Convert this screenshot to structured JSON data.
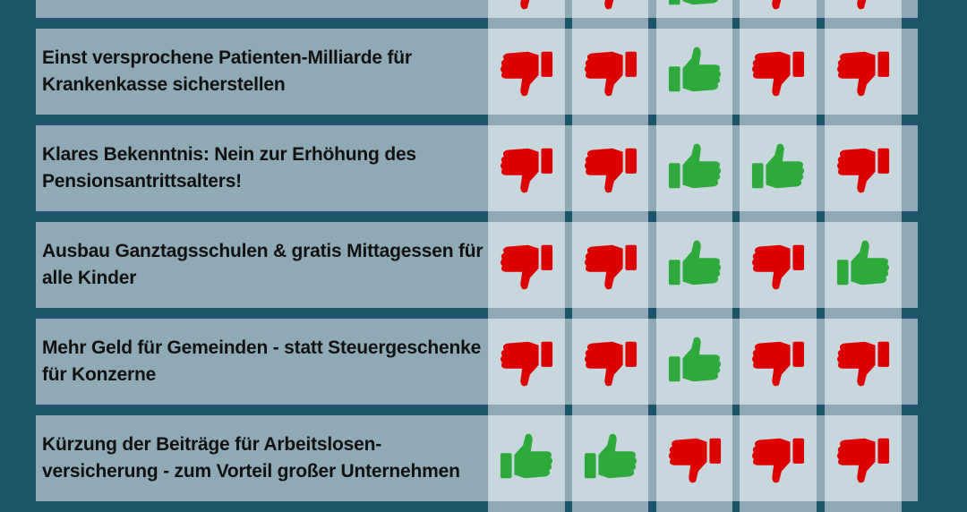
{
  "colors": {
    "background": "#1b5468",
    "label_cell": "#8eaab6",
    "vote_cell": "#c8d7de",
    "yes": "#2eaa3c",
    "no": "#dd0000"
  },
  "icons": {
    "up": "thumbs-up-icon",
    "down": "thumbs-down-icon"
  },
  "partial_top_row": {
    "votes": [
      "down",
      "down",
      "up",
      "down",
      "down"
    ]
  },
  "rows": [
    {
      "label": "Einst versprochene Patienten-Milliarde für Krankenkasse sicherstellen",
      "votes": [
        "down",
        "down",
        "up",
        "down",
        "down"
      ]
    },
    {
      "label": "Klares Bekenntnis: Nein zur Erhöhung des Pensionsantrittsalters!",
      "votes": [
        "down",
        "down",
        "up",
        "up",
        "down"
      ]
    },
    {
      "label": "Ausbau Ganztagsschulen & gratis Mittagessen für alle Kinder",
      "votes": [
        "down",
        "down",
        "up",
        "down",
        "up"
      ]
    },
    {
      "label": "Mehr Geld für Gemeinden - statt Steuergeschenke für Konzerne",
      "votes": [
        "down",
        "down",
        "up",
        "down",
        "down"
      ]
    },
    {
      "label": "Kürzung der Beiträge für Arbeitslosen-versicherung - zum Vorteil großer Unternehmen",
      "votes": [
        "up",
        "up",
        "down",
        "down",
        "down"
      ]
    }
  ]
}
